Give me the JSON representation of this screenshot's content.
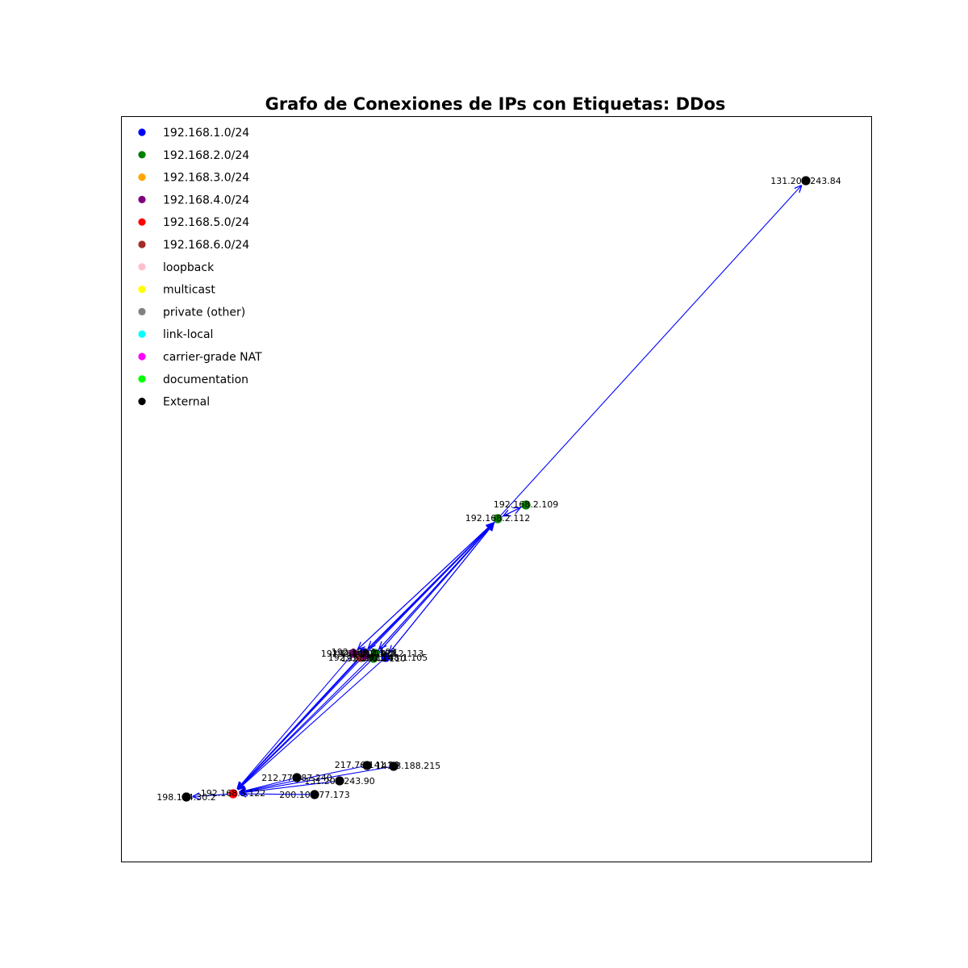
{
  "title": "Grafo de Conexiones de IPs con Etiquetas: DDos",
  "legend": [
    {
      "label": "192.168.1.0/24",
      "color": "#0000ff"
    },
    {
      "label": "192.168.2.0/24",
      "color": "#008000"
    },
    {
      "label": "192.168.3.0/24",
      "color": "#ffa500"
    },
    {
      "label": "192.168.4.0/24",
      "color": "#800080"
    },
    {
      "label": "192.168.5.0/24",
      "color": "#ff0000"
    },
    {
      "label": "192.168.6.0/24",
      "color": "#a52a2a"
    },
    {
      "label": "loopback",
      "color": "#ffc0cb"
    },
    {
      "label": "multicast",
      "color": "#ffff00"
    },
    {
      "label": "private (other)",
      "color": "#808080"
    },
    {
      "label": "link-local",
      "color": "#00ffff"
    },
    {
      "label": "carrier-grade NAT",
      "color": "#ff00ff"
    },
    {
      "label": "documentation",
      "color": "#00ff00"
    },
    {
      "label": "External",
      "color": "#000000"
    }
  ],
  "edge_color": "#0000ff",
  "nodes": [
    {
      "id": "131.202.243.84",
      "label": "131.202.243.84",
      "group": "External"
    },
    {
      "id": "192.168.2.109",
      "label": "192.168.2.109",
      "group": "192.168.2.0/24"
    },
    {
      "id": "192.168.2.112",
      "label": "192.168.2.112",
      "group": "192.168.2.0/24"
    },
    {
      "id": "192.168.1.103",
      "label": "192.168.1.103",
      "group": "192.168.1.0/24"
    },
    {
      "id": "192.168.4.119",
      "label": "192.168.4.119",
      "group": "192.168.4.0/24"
    },
    {
      "id": "192.168.2.113",
      "label": "192.168.2.113",
      "group": "192.168.2.0/24"
    },
    {
      "id": "192.168.1.105",
      "label": "192.168.1.105",
      "group": "192.168.1.0/24"
    },
    {
      "id": "192.168.2.110",
      "label": "192.168.2.110",
      "group": "192.168.2.0/24"
    },
    {
      "id": "192.168.6.114",
      "label": "192.168.6.114",
      "group": "192.168.6.0/24"
    },
    {
      "id": "192.168.4.118",
      "label": "192.168.4.118",
      "group": "192.168.4.0/24"
    },
    {
      "id": "192.168.5.122",
      "label": "192.168.5.122",
      "group": "192.168.5.0/24"
    },
    {
      "id": "198.164.30.2",
      "label": "198.164.30.2",
      "group": "External"
    },
    {
      "id": "212.77.187.240",
      "label": "212.77.187.240",
      "group": "External"
    },
    {
      "id": "217.76.141.20",
      "label": "217.76.141.20",
      "group": "External"
    },
    {
      "id": "141.8.188.215",
      "label": "141.8.188.215",
      "group": "External"
    },
    {
      "id": "131.202.243.90",
      "label": "131.202.243.90",
      "group": "External"
    },
    {
      "id": "200.100.77.173",
      "label": "200.100.77.173",
      "group": "External"
    }
  ],
  "edges": [
    {
      "source": "192.168.2.112",
      "target": "131.202.243.84"
    },
    {
      "source": "192.168.2.112",
      "target": "192.168.2.109"
    },
    {
      "source": "192.168.2.109",
      "target": "192.168.2.112"
    },
    {
      "source": "192.168.1.103",
      "target": "192.168.2.112"
    },
    {
      "source": "192.168.2.112",
      "target": "192.168.1.103"
    },
    {
      "source": "192.168.4.119",
      "target": "192.168.2.112"
    },
    {
      "source": "192.168.2.112",
      "target": "192.168.4.119"
    },
    {
      "source": "192.168.2.113",
      "target": "192.168.2.112"
    },
    {
      "source": "192.168.2.112",
      "target": "192.168.2.113"
    },
    {
      "source": "192.168.1.105",
      "target": "192.168.2.112"
    },
    {
      "source": "192.168.2.112",
      "target": "192.168.1.105"
    },
    {
      "source": "192.168.2.110",
      "target": "192.168.2.112"
    },
    {
      "source": "192.168.2.112",
      "target": "192.168.2.110"
    },
    {
      "source": "192.168.6.114",
      "target": "192.168.2.112"
    },
    {
      "source": "192.168.4.118",
      "target": "192.168.2.112"
    },
    {
      "source": "192.168.1.103",
      "target": "192.168.5.122"
    },
    {
      "source": "192.168.4.119",
      "target": "192.168.5.122"
    },
    {
      "source": "192.168.2.113",
      "target": "192.168.5.122"
    },
    {
      "source": "192.168.1.105",
      "target": "192.168.5.122"
    },
    {
      "source": "192.168.2.110",
      "target": "192.168.5.122"
    },
    {
      "source": "192.168.6.114",
      "target": "192.168.5.122"
    },
    {
      "source": "192.168.4.118",
      "target": "192.168.5.122"
    },
    {
      "source": "192.168.5.122",
      "target": "198.164.30.2"
    },
    {
      "source": "212.77.187.240",
      "target": "192.168.5.122"
    },
    {
      "source": "217.76.141.20",
      "target": "192.168.5.122"
    },
    {
      "source": "141.8.188.215",
      "target": "192.168.5.122"
    },
    {
      "source": "131.202.243.90",
      "target": "192.168.5.122"
    },
    {
      "source": "200.100.77.173",
      "target": "192.168.5.122"
    }
  ]
}
